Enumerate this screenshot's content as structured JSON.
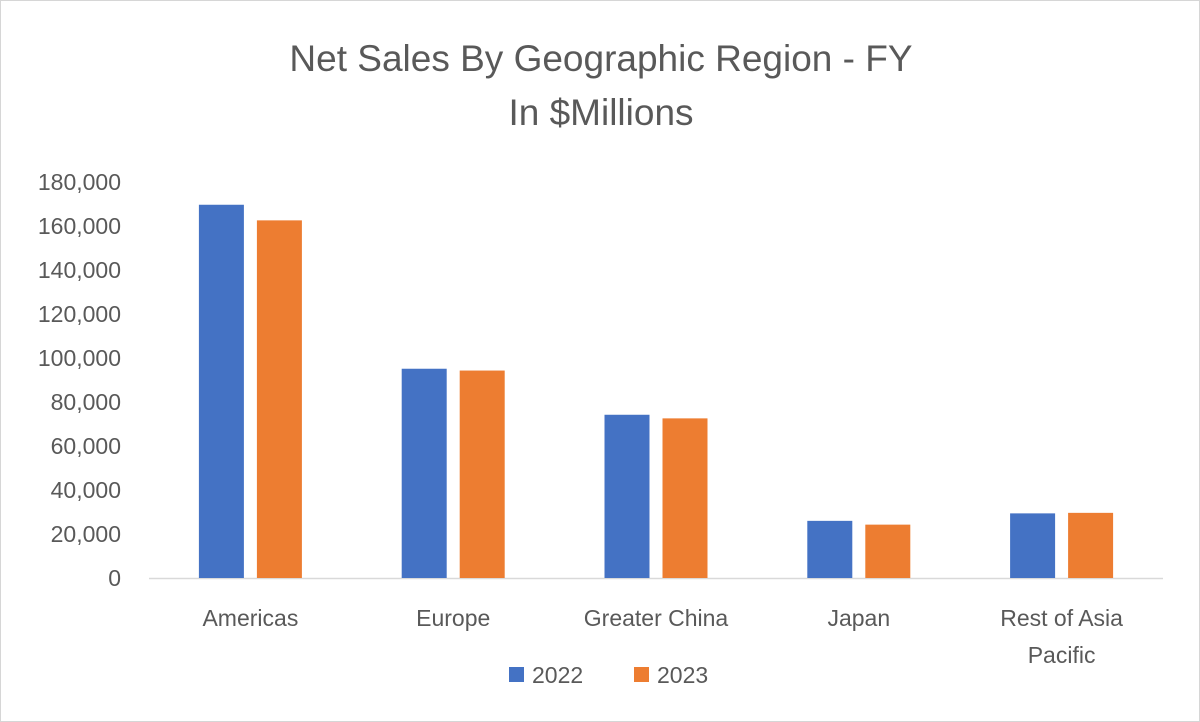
{
  "chart_data": {
    "type": "bar",
    "title": "Net Sales By Geographic Region - FY",
    "subtitle": "In $Millions",
    "categories": [
      "Americas",
      "Europe",
      "Greater China",
      "Japan",
      "Rest of Asia Pacific"
    ],
    "series": [
      {
        "name": "2022",
        "color": "#4472c4",
        "values": [
          169658,
          95118,
          74200,
          25977,
          29375
        ]
      },
      {
        "name": "2023",
        "color": "#ed7d31",
        "values": [
          162560,
          94294,
          72559,
          24257,
          29615
        ]
      }
    ],
    "ylim": [
      0,
      180000
    ],
    "yticks": [
      "0",
      "20,000",
      "40,000",
      "60,000",
      "80,000",
      "100,000",
      "120,000",
      "140,000",
      "160,000",
      "180,000"
    ],
    "xlabel": "",
    "ylabel": "",
    "grid": false,
    "legend_position": "bottom"
  }
}
